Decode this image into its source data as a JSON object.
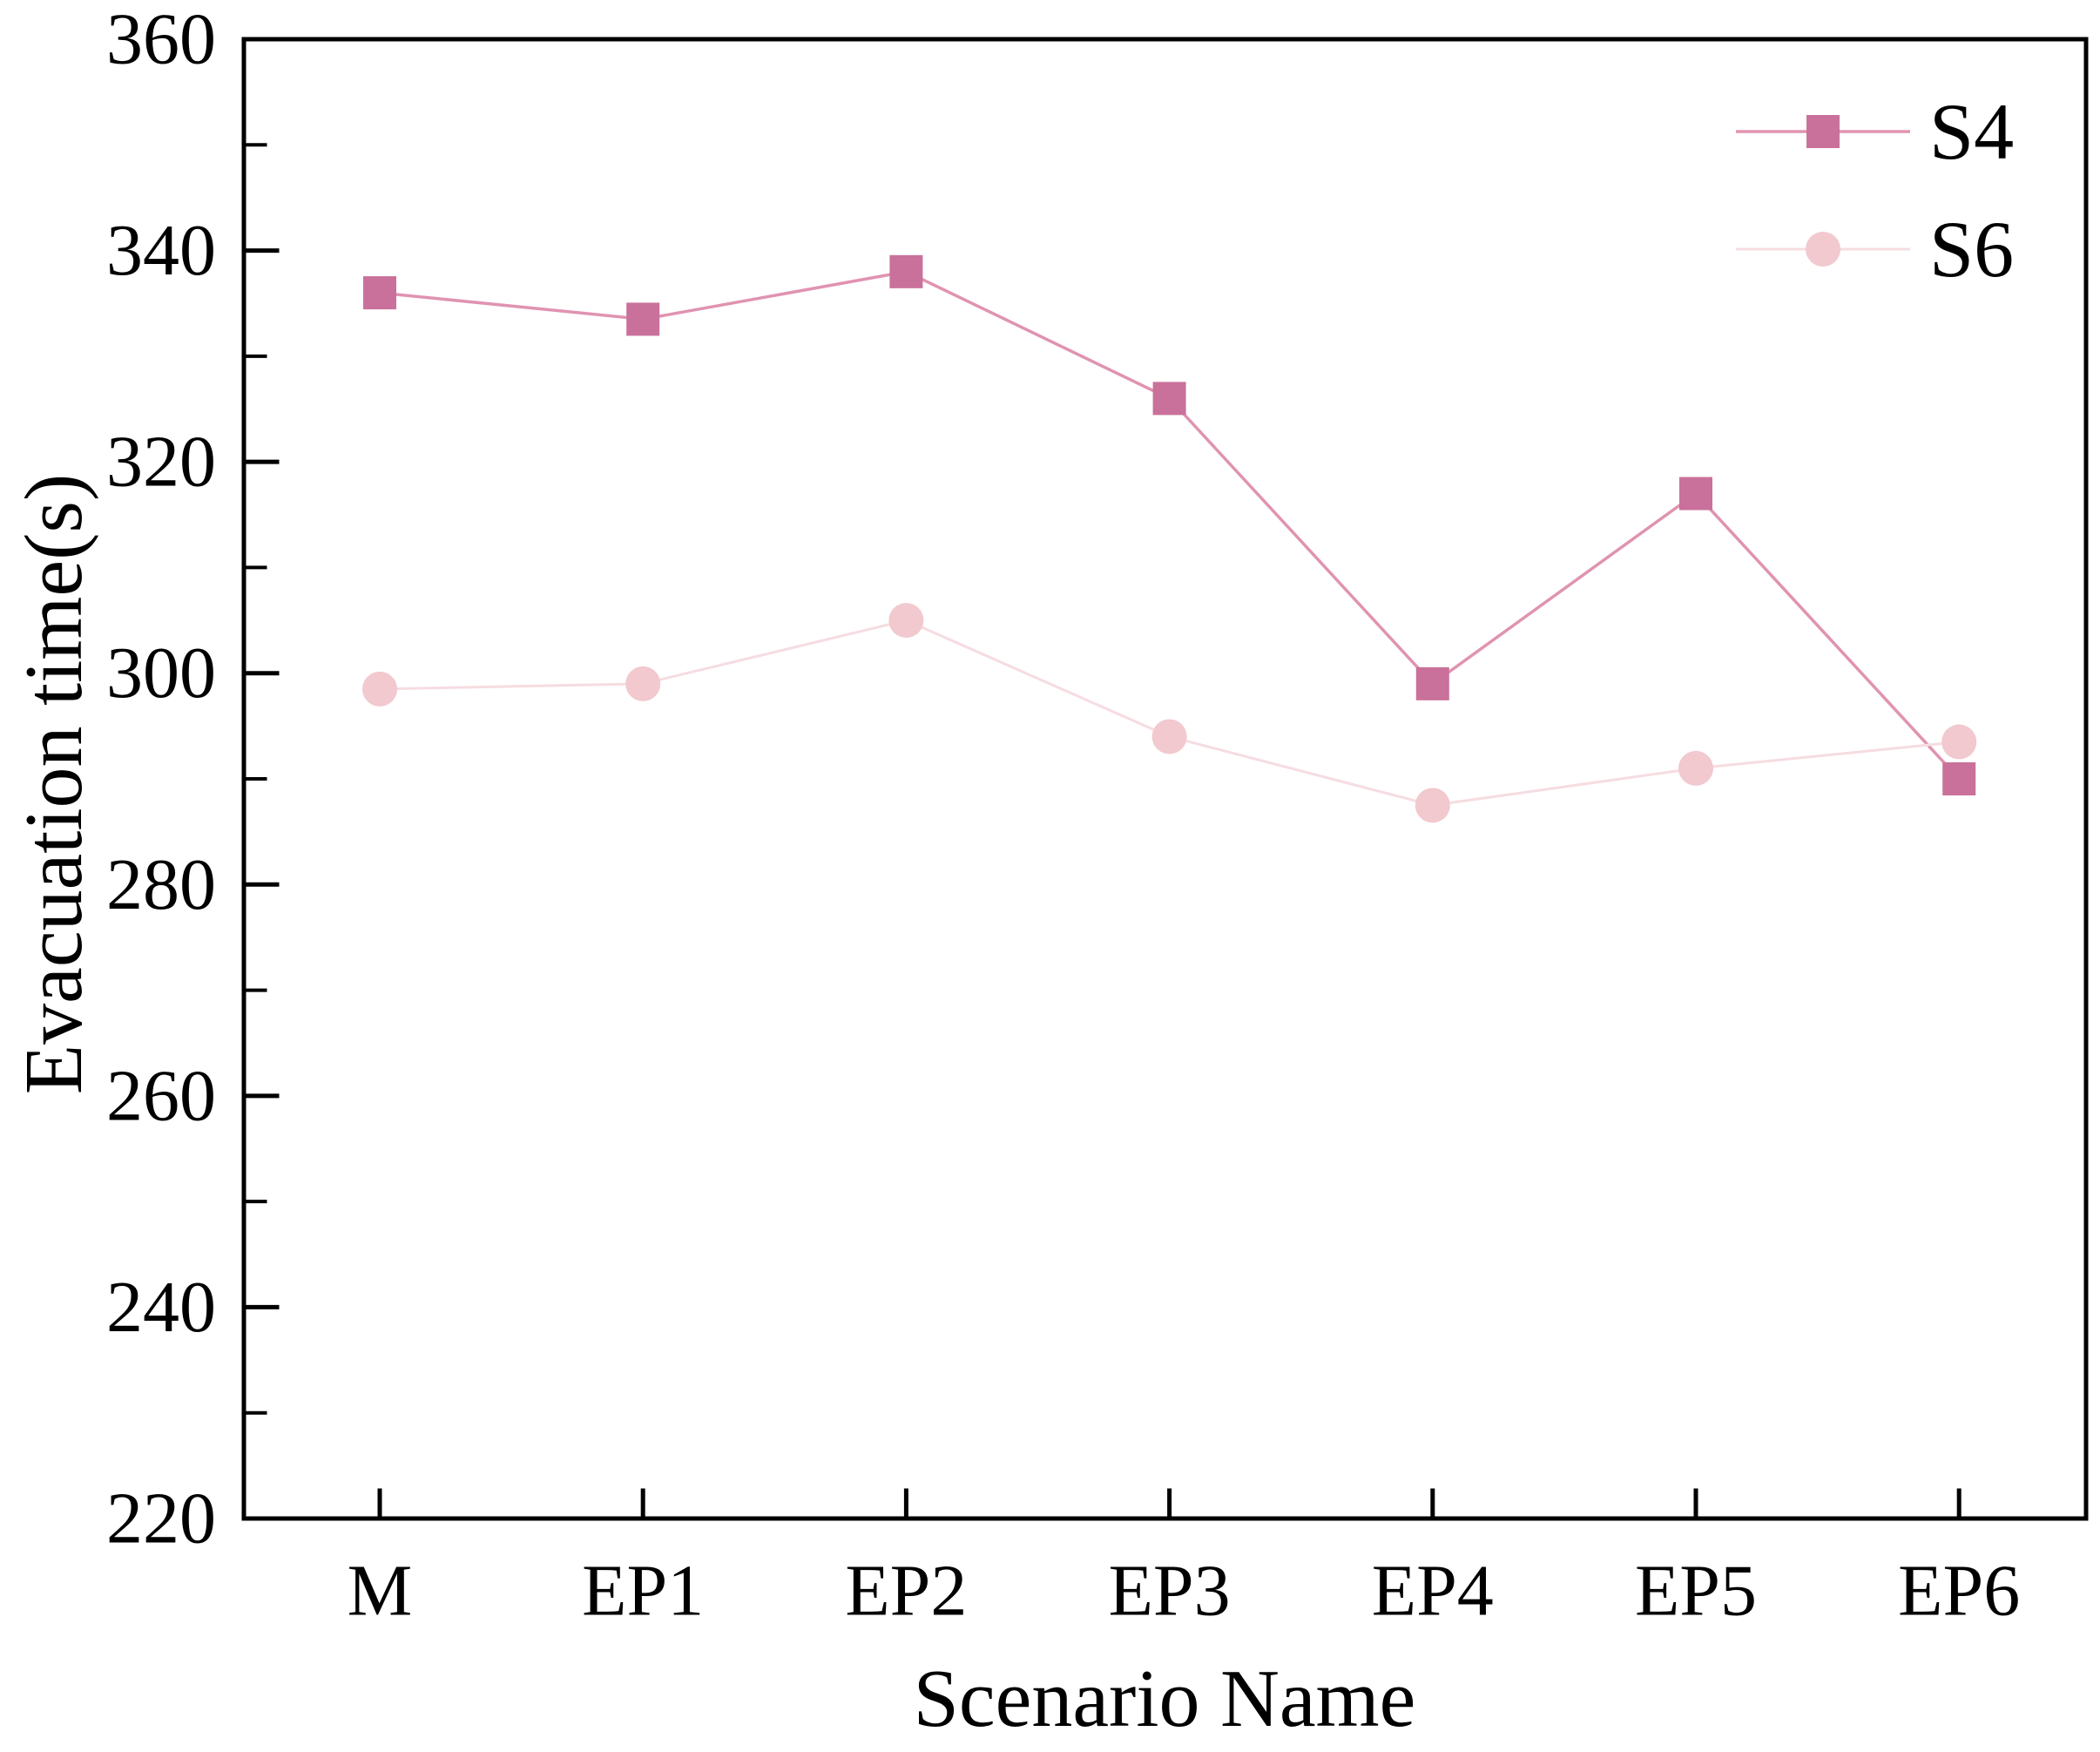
{
  "chart_data": {
    "type": "line",
    "title": "",
    "categories": [
      "M",
      "EP1",
      "EP2",
      "EP3",
      "EP4",
      "EP5",
      "EP6"
    ],
    "series": [
      {
        "name": "S4",
        "values": [
          336,
          333.5,
          338,
          326,
          299,
          317,
          290
        ],
        "marker": "square",
        "marker_color": "#C9719A",
        "line_color": "#E093B1",
        "marker_size": 38,
        "line_width": 3.5
      },
      {
        "name": "S6",
        "values": [
          298.5,
          299,
          305,
          294,
          287.5,
          291,
          293.5
        ],
        "marker": "circle",
        "marker_color": "#F1C9CE",
        "line_color": "#F6DCE1",
        "marker_size": 40,
        "line_width": 3
      }
    ],
    "xlabel": "Scenario Name",
    "ylabel": "Evacuation time(s)",
    "ylim": [
      220,
      360
    ],
    "y_major_step": 20,
    "y_minor_step": 10,
    "y_tick_labels": [
      "220",
      "240",
      "260",
      "280",
      "300",
      "320",
      "340",
      "360"
    ],
    "grid": false,
    "legend_position": "top-right",
    "axis_color": "#000000",
    "background": "#FFFFFF"
  }
}
